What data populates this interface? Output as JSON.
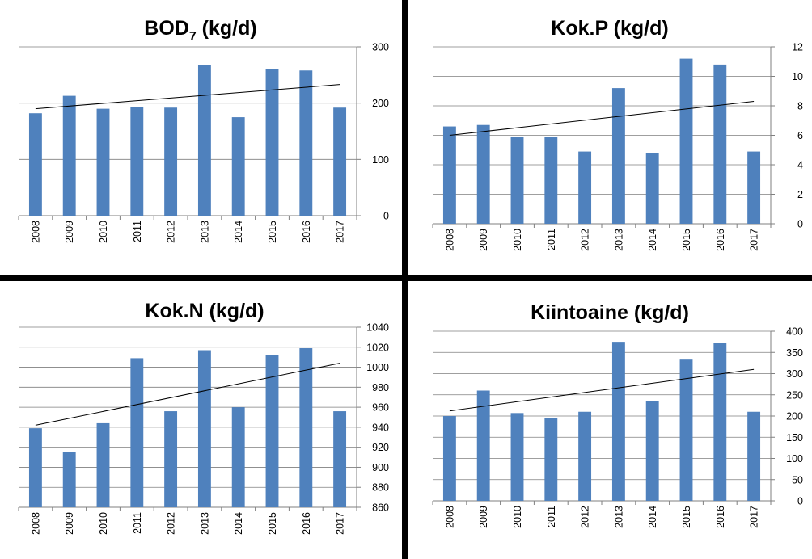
{
  "colors": {
    "bar": "#4f81bd",
    "trend": "#000000",
    "grid": "#7f7f7f"
  },
  "chart_data": [
    {
      "type": "bar",
      "title": "BOD",
      "title_subscript": "7",
      "title_suffix": " (kg/d)",
      "categories": [
        "2008",
        "2009",
        "2010",
        "2011",
        "2012",
        "2013",
        "2014",
        "2015",
        "2016",
        "2017"
      ],
      "values": [
        182,
        213,
        190,
        193,
        192,
        268,
        175,
        260,
        258,
        192
      ],
      "ylim": [
        0,
        300
      ],
      "yticks": [
        0,
        100,
        200,
        300
      ],
      "ytick_labels": [
        "0",
        "100",
        "200",
        "300"
      ],
      "y_axis_side": "right",
      "grid": true,
      "trendline": [
        190,
        233
      ]
    },
    {
      "type": "bar",
      "title": "Kok.P  (kg/d)",
      "categories": [
        "2008",
        "2009",
        "2010",
        "2011",
        "2012",
        "2013",
        "2014",
        "2015",
        "2016",
        "2017"
      ],
      "values": [
        6.6,
        6.7,
        5.9,
        5.9,
        4.9,
        9.2,
        4.8,
        11.2,
        10.8,
        4.9
      ],
      "ylim": [
        0,
        12
      ],
      "yticks": [
        0,
        2,
        4,
        6,
        8,
        10,
        12
      ],
      "ytick_labels": [
        "0",
        "2",
        "4",
        "6",
        "8",
        "10",
        "12"
      ],
      "y_axis_side": "right",
      "grid": true,
      "trendline": [
        6.0,
        8.3
      ]
    },
    {
      "type": "bar",
      "title": "Kok.N (kg/d)",
      "categories": [
        "2008",
        "2009",
        "2010",
        "2011",
        "2012",
        "2013",
        "2014",
        "2015",
        "2016",
        "2017"
      ],
      "values": [
        939,
        915,
        944,
        1009,
        956,
        1017,
        960,
        1012,
        1019,
        956
      ],
      "ylim": [
        860,
        1040
      ],
      "yticks": [
        860,
        880,
        900,
        920,
        940,
        960,
        980,
        1000,
        1020,
        1040
      ],
      "ytick_labels": [
        "860",
        "880",
        "900",
        "920",
        "940",
        "960",
        "980",
        "1000",
        "1020",
        "1040"
      ],
      "y_axis_side": "right",
      "grid": true,
      "trendline": [
        942,
        1004
      ]
    },
    {
      "type": "bar",
      "title": "Kiintoaine (kg/d)",
      "categories": [
        "2008",
        "2009",
        "2010",
        "2011",
        "2012",
        "2013",
        "2014",
        "2015",
        "2016",
        "2017"
      ],
      "values": [
        200,
        260,
        207,
        195,
        210,
        375,
        235,
        333,
        373,
        210
      ],
      "ylim": [
        0,
        400
      ],
      "yticks": [
        0,
        50,
        100,
        150,
        200,
        250,
        300,
        350,
        400
      ],
      "ytick_labels": [
        "0",
        "50",
        "100",
        "150",
        "200",
        "250",
        "300",
        "350",
        "400"
      ],
      "y_axis_side": "right",
      "grid": true,
      "trendline": [
        212,
        310
      ]
    }
  ]
}
